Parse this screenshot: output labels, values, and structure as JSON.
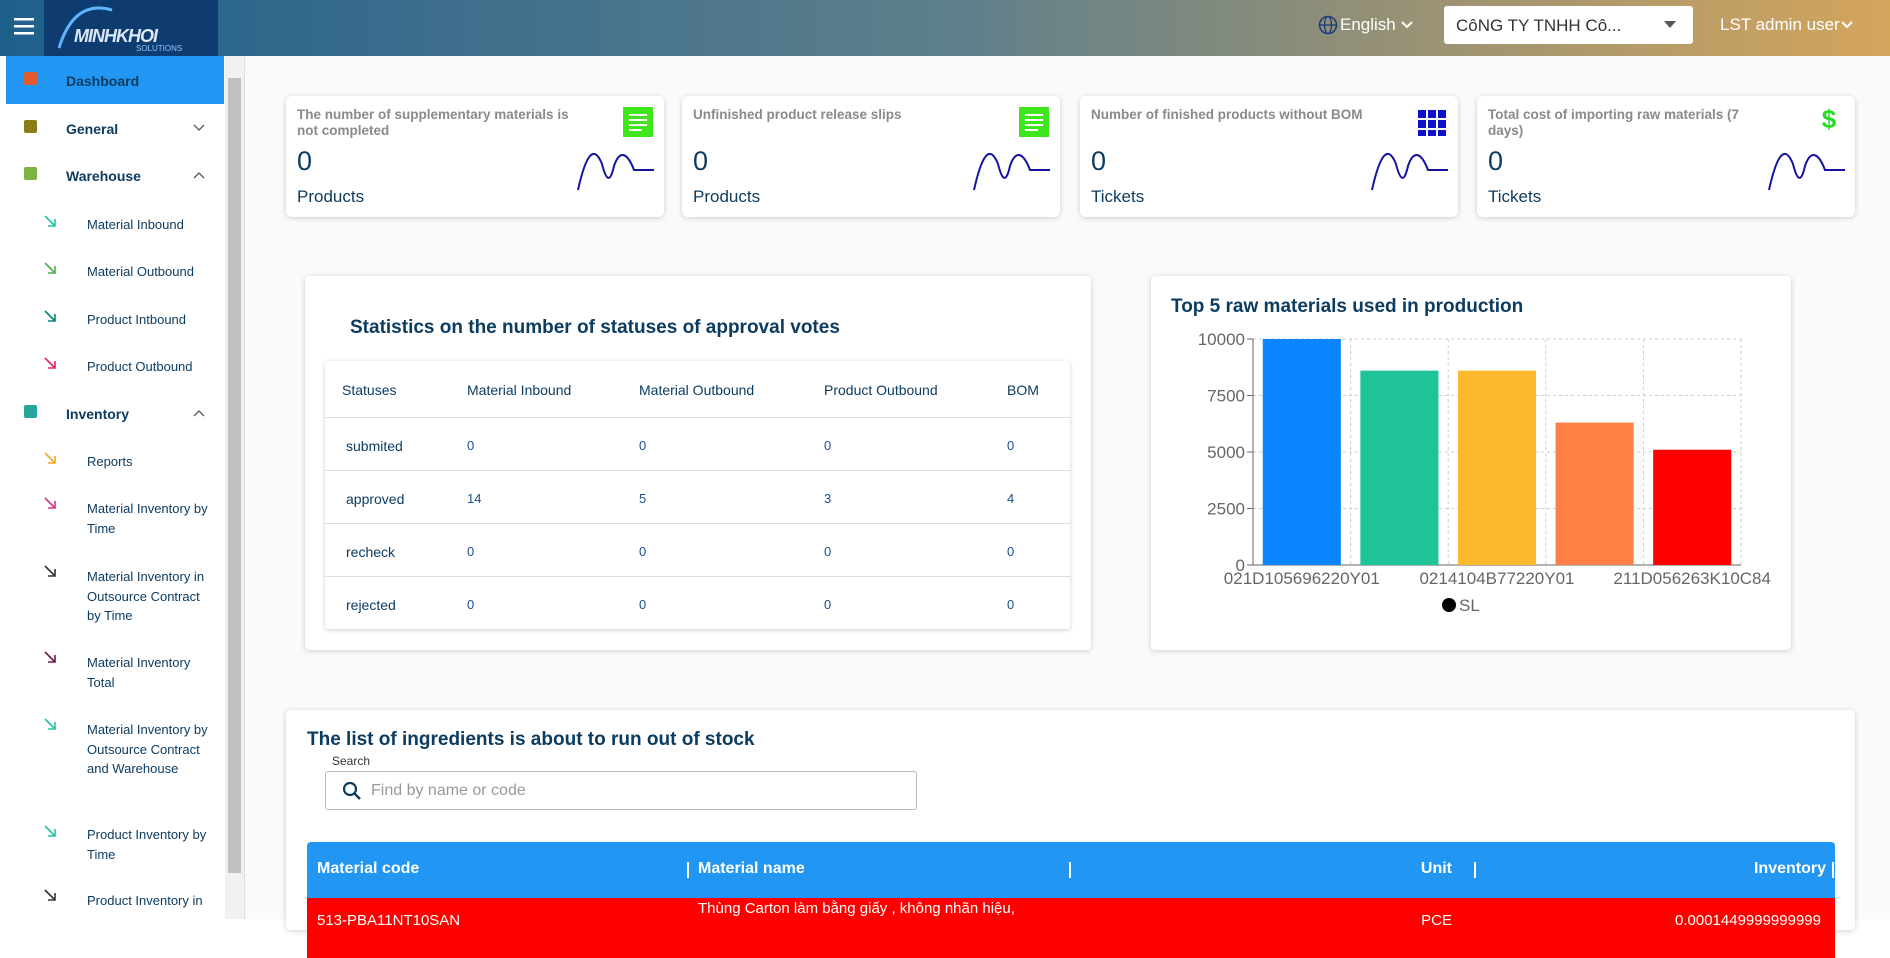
{
  "header": {
    "logo": "MINHKHOI",
    "logo_sub": "SOLUTIONS",
    "language": "English",
    "company": "CôNG TY TNHH Cô...",
    "user": "LST admin user"
  },
  "sidebar": {
    "items": [
      {
        "label": "Dashboard",
        "level": 0,
        "active": true
      },
      {
        "label": "General",
        "level": 0,
        "expand": "down"
      },
      {
        "label": "Warehouse",
        "level": 0,
        "expand": "up"
      },
      {
        "label": "Material Inbound",
        "level": 1
      },
      {
        "label": "Material Outbound",
        "level": 1
      },
      {
        "label": "Product Intbound",
        "level": 1
      },
      {
        "label": "Product Outbound",
        "level": 1
      },
      {
        "label": "Inventory",
        "level": 0,
        "expand": "up"
      },
      {
        "label": "Reports",
        "level": 1
      },
      {
        "label": "Material Inventory by Time",
        "level": 1
      },
      {
        "label": "Material Inventory in Outsource Contract by Time",
        "level": 1
      },
      {
        "label": "Material Inventory Total",
        "level": 1
      },
      {
        "label": "Material Inventory by Outsource Contract and Warehouse",
        "level": 1
      },
      {
        "label": "Product Inventory by Time",
        "level": 1
      },
      {
        "label": "Product Inventory in",
        "level": 1
      }
    ]
  },
  "cards": [
    {
      "title": "The number of supplementary materials is not completed",
      "value": "0",
      "unit": "Products"
    },
    {
      "title": "Unfinished product release slips",
      "value": "0",
      "unit": "Products"
    },
    {
      "title": "Number of finished products without BOM",
      "value": "0",
      "unit": "Tickets"
    },
    {
      "title": "Total cost of importing raw materials (7 days)",
      "value": "0",
      "unit": "Tickets"
    }
  ],
  "status_table": {
    "title": "Statistics on the number of statuses of approval votes",
    "headers": [
      "Statuses",
      "Material Inbound",
      "Material Outbound",
      "Product Outbound",
      "BOM"
    ],
    "rows": [
      [
        "submited",
        "0",
        "0",
        "0",
        "0"
      ],
      [
        "approved",
        "14",
        "5",
        "3",
        "4"
      ],
      [
        "recheck",
        "0",
        "0",
        "0",
        "0"
      ],
      [
        "rejected",
        "0",
        "0",
        "0",
        "0"
      ]
    ]
  },
  "chart_data": {
    "type": "bar",
    "title": "Top 5 raw materials used in production",
    "categories": [
      "021D105696220Y01",
      null,
      "0214104B77220Y01",
      null,
      "211D056263K10C84"
    ],
    "series": [
      {
        "name": "SL",
        "color": "#000000",
        "bar_colors": [
          "#0a84ff",
          "#1ec397",
          "#fdb92d",
          "#ff7f45",
          "#ff0000"
        ],
        "values": [
          10000,
          8600,
          8600,
          6300,
          5100
        ]
      }
    ],
    "ylim": [
      0,
      10000
    ],
    "yticks": [
      0,
      2500,
      5000,
      7500,
      10000
    ],
    "grid": true
  },
  "stock": {
    "title": "The list of ingredients is about to run out of stock",
    "search_label": "Search",
    "search_placeholder": "Find by name or code",
    "headers": [
      "Material code",
      "Material name",
      "Unit",
      "Inventory"
    ],
    "rows": [
      [
        "513-PBA11NT10SAN",
        "Thùng Carton làm bằng giấy , không nhãn hiệu,",
        "PCE",
        "0.0001449999999999"
      ]
    ]
  }
}
